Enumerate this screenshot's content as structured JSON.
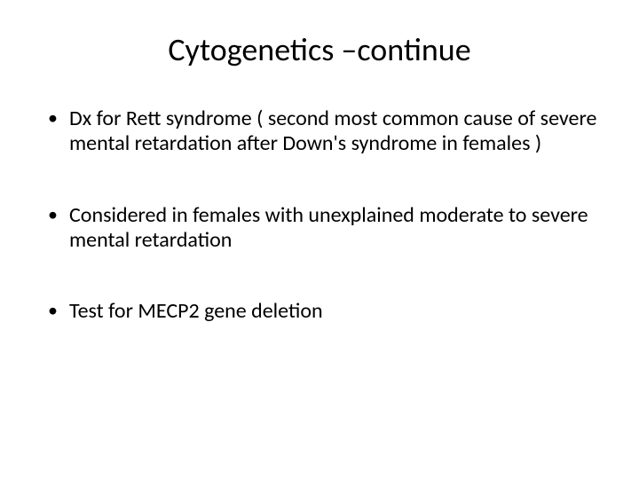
{
  "slide": {
    "title": "Cytogenetics –continue",
    "bullets": [
      "Dx for Rett syndrome ( second most common cause of severe mental retardation after Down's syndrome in females )",
      "Considered in females with unexplained moderate to severe mental retardation",
      "Test for MECP2 gene deletion"
    ],
    "title_fontsize": 36,
    "body_fontsize": 24,
    "text_color": "#000000",
    "background_color": "#ffffff",
    "font_family": "Calibri"
  }
}
